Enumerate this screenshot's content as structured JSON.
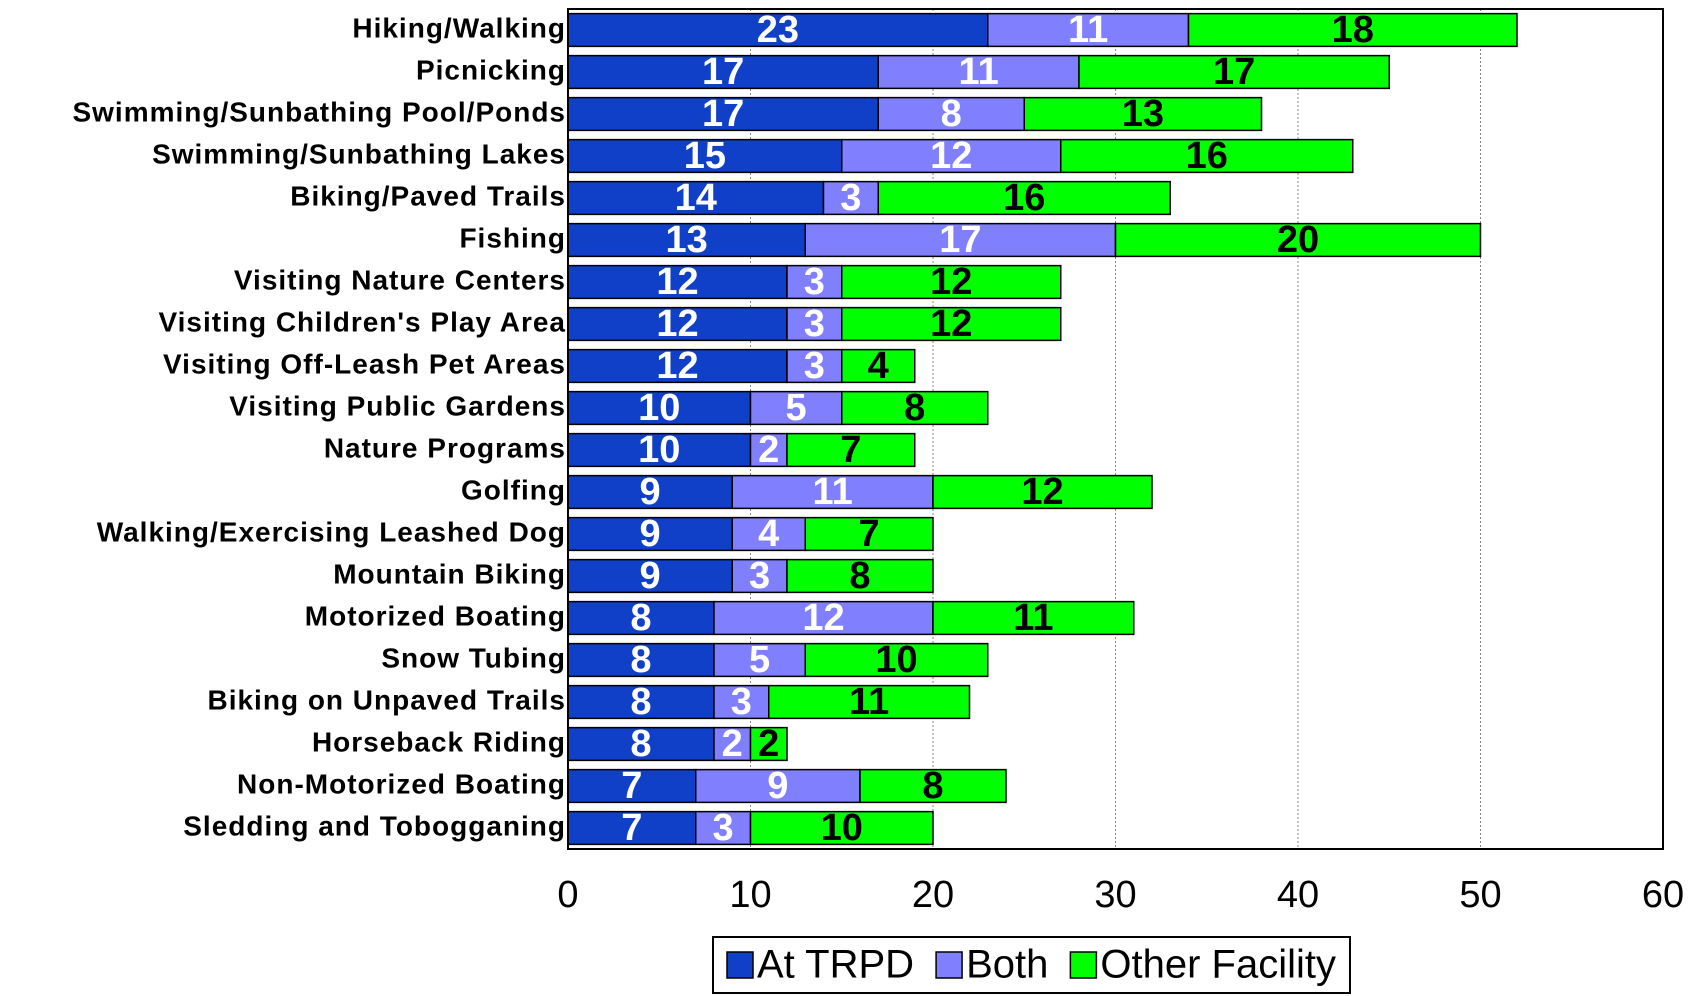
{
  "chart_data": {
    "type": "stacked_barh",
    "categories": [
      "Hiking/Walking",
      "Picnicking",
      "Swimming/Sunbathing Pool/Ponds",
      "Swimming/Sunbathing Lakes",
      "Biking/Paved Trails",
      "Fishing",
      "Visiting Nature Centers",
      "Visiting Children's Play Area",
      "Visiting Off-Leash Pet Areas",
      "Visiting Public Gardens",
      "Nature Programs",
      "Golfing",
      "Walking/Exercising Leashed Dog",
      "Mountain Biking",
      "Motorized Boating",
      "Snow Tubing",
      "Biking on Unpaved Trails",
      "Horseback Riding",
      "Non-Motorized Boating",
      "Sledding and Tobogganing"
    ],
    "series": [
      {
        "name": "At TRPD",
        "color": "#1040c8",
        "label_color": "#ffffff",
        "values": [
          23,
          17,
          17,
          15,
          14,
          13,
          12,
          12,
          12,
          10,
          10,
          9,
          9,
          9,
          8,
          8,
          8,
          8,
          7,
          7
        ]
      },
      {
        "name": "Both",
        "color": "#8080ff",
        "label_color": "#ffffff",
        "values": [
          11,
          11,
          8,
          12,
          3,
          17,
          3,
          3,
          3,
          5,
          2,
          11,
          4,
          3,
          12,
          5,
          3,
          2,
          9,
          3
        ]
      },
      {
        "name": "Other Facility",
        "color": "#00ff00",
        "label_color": "#000000",
        "values": [
          18,
          17,
          13,
          16,
          16,
          20,
          12,
          12,
          4,
          8,
          7,
          12,
          7,
          8,
          11,
          10,
          11,
          2,
          8,
          10
        ]
      }
    ],
    "xlim": [
      0,
      60
    ],
    "xticks": [
      0,
      10,
      20,
      30,
      40,
      50,
      60
    ],
    "grid": true,
    "legend": "bottom"
  }
}
